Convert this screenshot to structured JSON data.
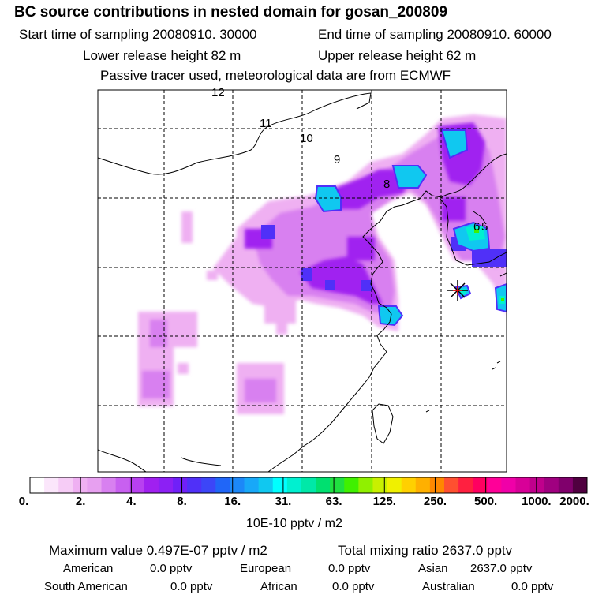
{
  "header": {
    "title": "BC  source contributions in nested domain for gosan_200809",
    "start_time": "Start time of sampling 20080910. 30000",
    "end_time": "End time of sampling 20080910. 60000",
    "lower_height": "Lower release height   82 m",
    "upper_height": "Upper release height   62 m",
    "tracer_note": "Passive tracer used, meteorological data are from ECMWF"
  },
  "map": {
    "trajectory_labels": [
      "12",
      "11",
      "10",
      "9",
      "8",
      "6",
      "5"
    ]
  },
  "colorbar": {
    "colors": [
      "#ffffff",
      "#fbe6fb",
      "#f6ccf6",
      "#efb0f2",
      "#e7a0f0",
      "#d880f0",
      "#c860f0",
      "#b840f0",
      "#a020f0",
      "#8c20f4",
      "#7020f8",
      "#5030f8",
      "#3c46f8",
      "#2066f8",
      "#1c88f8",
      "#18a8f8",
      "#10c8f0",
      "#00ffff",
      "#00f0d0",
      "#00e8a8",
      "#00e070",
      "#20e040",
      "#40f000",
      "#90f000",
      "#c8f000",
      "#f0f000",
      "#ffd000",
      "#ffb000",
      "#ff8800",
      "#ff5030",
      "#ff2040",
      "#ff0060",
      "#ff0098",
      "#f000a8",
      "#d80098",
      "#c0008c",
      "#a00080",
      "#80006c",
      "#500040"
    ],
    "tick_labels": [
      "0.",
      "2.",
      "4.",
      "8.",
      "16.",
      "31.",
      "63.",
      "125.",
      "250.",
      "500.",
      "1000.",
      "2000."
    ],
    "units": "10E-10 pptv / m2"
  },
  "stats": {
    "max_value": "Maximum value  0.497E-07 pptv / m2",
    "total_mixing": "Total mixing ratio     2637.0 pptv",
    "regions": [
      {
        "name": "American",
        "value": "0.0 pptv"
      },
      {
        "name": "European",
        "value": "0.0 pptv"
      },
      {
        "name": "Asian",
        "value": "2637.0 pptv"
      },
      {
        "name": "South American",
        "value": "0.0 pptv"
      },
      {
        "name": "African",
        "value": "0.0 pptv"
      },
      {
        "name": "Australian",
        "value": "0.0 pptv"
      }
    ]
  }
}
